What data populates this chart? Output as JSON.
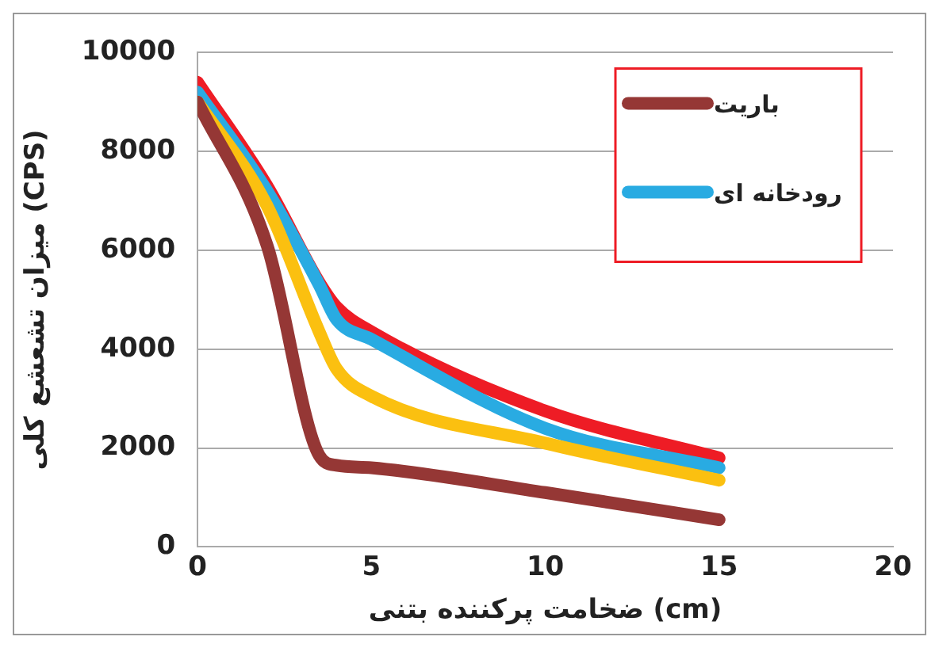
{
  "chart_data": {
    "type": "line",
    "xlabel": "ضخامت پرکننده بتنی (cm)",
    "ylabel": "میزان تشعشع کلی (CPS)",
    "x": [
      0,
      2,
      3.5,
      4,
      5,
      10,
      15
    ],
    "series": [
      {
        "name": "باریت",
        "color": "#953735",
        "values": [
          9000,
          6100,
          1850,
          1650,
          1600,
          1100,
          550
        ]
      },
      {
        "color": "#fbc010",
        "values": [
          9000,
          6900,
          4350,
          3600,
          3050,
          2100,
          1350
        ]
      },
      {
        "name": "رودخانه ای",
        "color": "#29abe2",
        "values": [
          9200,
          7200,
          5300,
          4600,
          4200,
          2400,
          1600
        ]
      },
      {
        "color": "#ee1c25",
        "values": [
          9400,
          7300,
          5350,
          4850,
          4350,
          2750,
          1800
        ]
      }
    ],
    "xlim": [
      0,
      20
    ],
    "xticks": [
      0,
      5,
      10,
      15,
      20
    ],
    "ylim": [
      0,
      10000
    ],
    "yticks": [
      0,
      2000,
      4000,
      6000,
      8000,
      10000
    ],
    "grid": "y",
    "legend": "top right",
    "marker": "none",
    "line_style": "solid"
  }
}
